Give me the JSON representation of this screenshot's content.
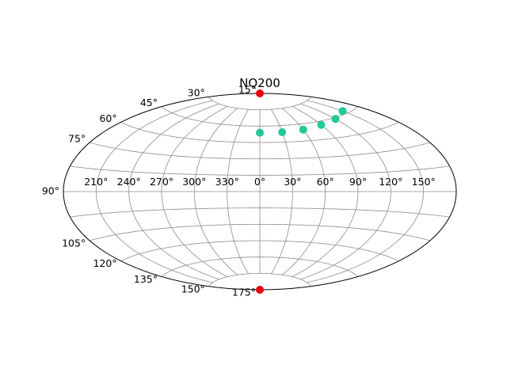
{
  "chart_data": {
    "type": "scatter",
    "projection": "aitoff",
    "title": "NQ200",
    "lon_ticks": [
      "210°",
      "240°",
      "270°",
      "300°",
      "330°",
      "0°",
      "30°",
      "60°",
      "90°",
      "120°",
      "150°"
    ],
    "lat_ticks": [
      "15°",
      "30°",
      "45°",
      "60°",
      "75°",
      "90°",
      "105°",
      "120°",
      "135°",
      "150°",
      "175°"
    ],
    "grid": true,
    "series": [
      {
        "color": "#20c997",
        "x": [
          0,
          30,
          60,
          90,
          120,
          150
        ],
        "y": [
          54,
          54,
          55,
          57,
          59,
          62
        ]
      },
      {
        "color": "#e8000b",
        "x": [
          0,
          0
        ],
        "y": [
          90,
          -90
        ]
      }
    ]
  }
}
